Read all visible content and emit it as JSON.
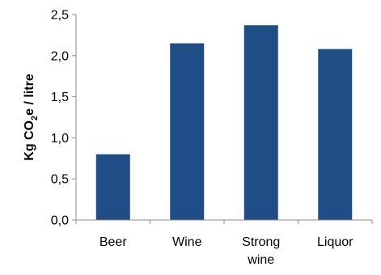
{
  "chart_data": {
    "type": "bar",
    "categories": [
      "Beer",
      "Wine",
      "Strong wine",
      "Liquor"
    ],
    "category_lines": [
      [
        "Beer"
      ],
      [
        "Wine"
      ],
      [
        "Strong",
        "wine"
      ],
      [
        "Liquor"
      ]
    ],
    "values": [
      0.8,
      2.15,
      2.37,
      2.08
    ],
    "ylabel": {
      "prefix": "Kg CO",
      "subscript": "2",
      "suffix": "e / litre"
    },
    "ylim": [
      0,
      2.5
    ],
    "yticks": [
      "0,0",
      "0,5",
      "1,0",
      "1,5",
      "2,0",
      "2,5"
    ],
    "grid": false,
    "bar_color": "#1F4E86",
    "axis_color": "#8C8C8C"
  }
}
